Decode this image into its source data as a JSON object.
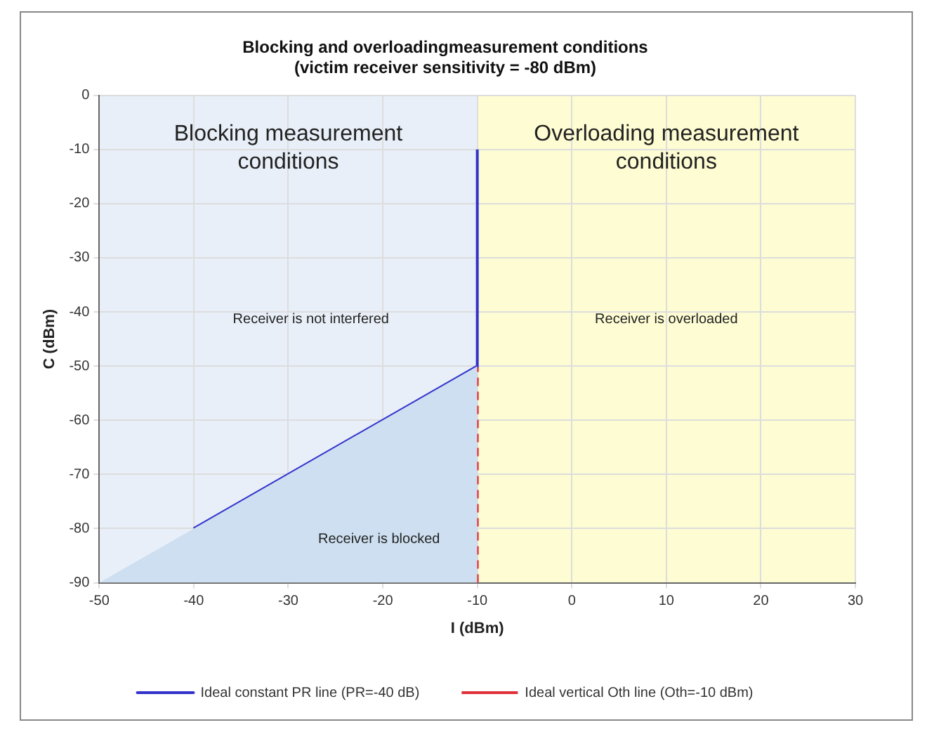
{
  "chart_data": {
    "type": "line",
    "title": "Blocking and overloadingmeasurement conditions",
    "subtitle": "(victim receiver sensitivity = -80 dBm)",
    "xlabel": "I (dBm)",
    "ylabel": "C (dBm)",
    "xlim": [
      -50,
      30
    ],
    "xticks": [
      -50,
      -40,
      -30,
      -20,
      -10,
      0,
      10,
      20,
      30
    ],
    "ylim": [
      -90,
      0
    ],
    "yticks": [
      -90,
      -80,
      -70,
      -60,
      -50,
      -40,
      -30,
      -20,
      -10,
      0
    ],
    "grid": true,
    "legend": "bottom",
    "marker": "none",
    "series": [
      {
        "type": "area",
        "color": "#cddff0",
        "x": [
          -50,
          -10
        ],
        "values": [
          -90,
          -50
        ]
      },
      {
        "name": "Ideal constant PR line (PR=-40 dB)",
        "color": "#3333cc",
        "x": [
          -40,
          -10,
          -10
        ],
        "values": [
          -80,
          -50,
          -10
        ],
        "line_style": "solid"
      },
      {
        "name": "Ideal vertical Oth line (Oth=-10 dBm)",
        "color": "#e0303a",
        "x": [
          -10,
          -10
        ],
        "values": [
          -90,
          -50
        ],
        "line_style": "dashed"
      }
    ],
    "bands": [
      {
        "axis": "x",
        "from": -50,
        "to": -10,
        "label": "Blocking measurement conditions",
        "color": "#e8eff8"
      },
      {
        "axis": "x",
        "from": -10,
        "to": 30,
        "label": "Overloading measurement conditions",
        "color": "#fdfcd2"
      }
    ],
    "annotations": [
      "Receiver is not interfered",
      "Receiver is overloaded",
      "Receiver is blocked"
    ]
  }
}
